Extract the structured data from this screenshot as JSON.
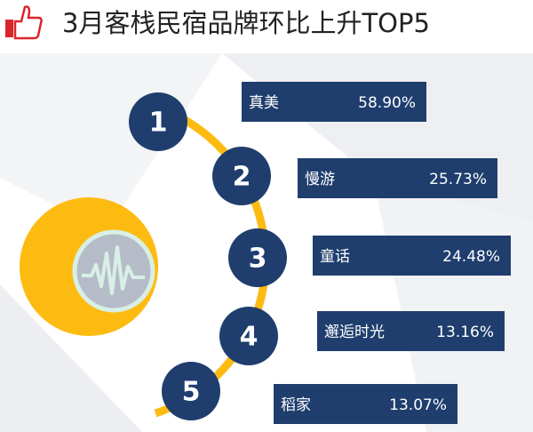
{
  "title": "3月客栈民宿品牌环比上升TOP5",
  "items": [
    {
      "rank": "1",
      "name": "真美",
      "value": "58.90%"
    },
    {
      "rank": "2",
      "name": "慢游",
      "value": "25.73%"
    },
    {
      "rank": "3",
      "name": "童话",
      "value": "24.48%"
    },
    {
      "rank": "4",
      "name": "邂逅时光",
      "value": "13.16%"
    },
    {
      "rank": "5",
      "name": "稻家",
      "value": "13.07%"
    }
  ]
}
